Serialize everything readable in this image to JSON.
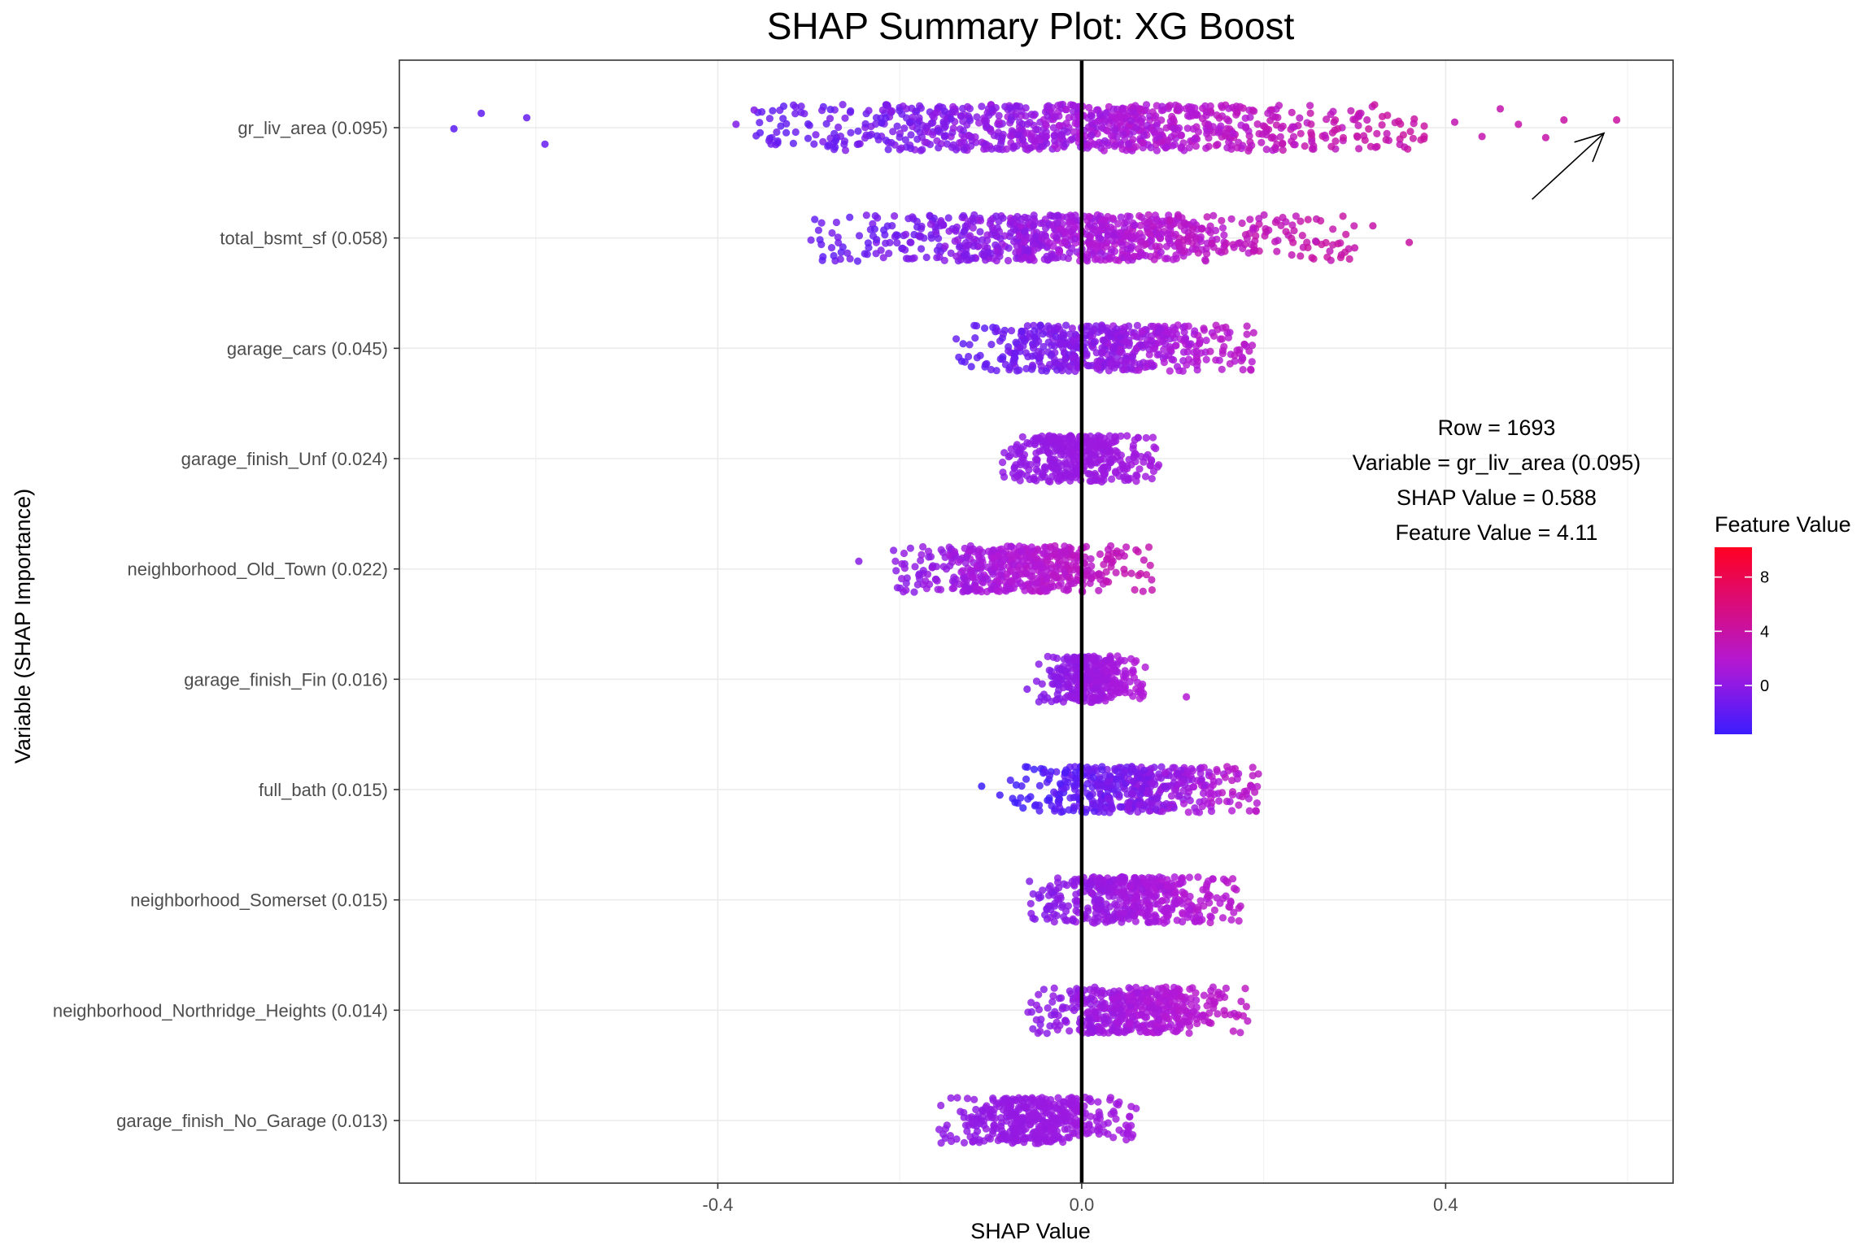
{
  "chart_data": {
    "type": "scatter",
    "title": "SHAP Summary Plot: XG Boost",
    "xlabel": "SHAP Value",
    "ylabel": "Variable (SHAP Importance)",
    "xlim": [
      -0.75,
      0.65
    ],
    "xticks": [
      -0.4,
      0.0,
      0.4
    ],
    "xtick_labels": [
      "-0.4",
      "0.0",
      "0.4"
    ],
    "grid": true,
    "zero_line": 0.0,
    "variables": [
      {
        "name": "gr_liv_area (0.095)",
        "shap_min": -0.69,
        "shap_max": 0.588,
        "dense_min": -0.36,
        "dense_max": 0.38,
        "feature_min": -2.2,
        "feature_max": 4.2,
        "outliers": [
          [
            -0.69,
            -0.01
          ],
          [
            -0.66,
            0.13
          ],
          [
            -0.61,
            0.09
          ],
          [
            -0.59,
            -0.15
          ],
          [
            -0.36,
            0.16
          ],
          [
            -0.38,
            0.03
          ],
          [
            0.41,
            0.05
          ],
          [
            0.44,
            -0.08
          ],
          [
            0.46,
            0.17
          ],
          [
            0.48,
            0.03
          ],
          [
            0.51,
            -0.09
          ],
          [
            0.53,
            0.07
          ],
          [
            0.588,
            0.07
          ]
        ]
      },
      {
        "name": "total_bsmt_sf (0.058)",
        "shap_min": -0.31,
        "shap_max": 0.36,
        "dense_min": -0.3,
        "dense_max": 0.3,
        "feature_min": -2.1,
        "feature_max": 4.1,
        "outliers": [
          [
            0.36,
            -0.04
          ],
          [
            0.32,
            0.11
          ],
          [
            0.3,
            -0.09
          ]
        ]
      },
      {
        "name": "garage_cars (0.045)",
        "shap_min": -0.14,
        "shap_max": 0.19,
        "dense_min": -0.14,
        "dense_max": 0.19,
        "feature_min": -2.3,
        "feature_max": 2.5,
        "outliers": []
      },
      {
        "name": "garage_finish_Unf (0.024)",
        "shap_min": -0.09,
        "shap_max": 0.085,
        "dense_min": -0.09,
        "dense_max": 0.085,
        "feature_min": 0.0,
        "feature_max": 0.9,
        "outliers": []
      },
      {
        "name": "neighborhood_Old_Town (0.022)",
        "shap_min": -0.245,
        "shap_max": 0.08,
        "dense_min": -0.21,
        "dense_max": 0.08,
        "feature_min": -0.3,
        "feature_max": 3.6,
        "outliers": [
          [
            -0.245,
            0.07
          ]
        ]
      },
      {
        "name": "garage_finish_Fin (0.016)",
        "shap_min": -0.06,
        "shap_max": 0.115,
        "dense_min": -0.05,
        "dense_max": 0.07,
        "feature_min": -0.6,
        "feature_max": 1.7,
        "outliers": [
          [
            0.115,
            -0.16
          ],
          [
            -0.06,
            -0.09
          ]
        ]
      },
      {
        "name": "full_bath (0.015)",
        "shap_min": -0.11,
        "shap_max": 0.195,
        "dense_min": -0.08,
        "dense_max": 0.195,
        "feature_min": -3.6,
        "feature_max": 2.5,
        "outliers": [
          [
            -0.11,
            0.03
          ],
          [
            -0.09,
            -0.05
          ]
        ]
      },
      {
        "name": "neighborhood_Somerset (0.015)",
        "shap_min": -0.06,
        "shap_max": 0.175,
        "dense_min": -0.06,
        "dense_max": 0.175,
        "feature_min": -0.6,
        "feature_max": 2.3,
        "outliers": []
      },
      {
        "name": "neighborhood_Northridge_Heights (0.014)",
        "shap_min": -0.06,
        "shap_max": 0.185,
        "dense_min": -0.06,
        "dense_max": 0.185,
        "feature_min": -0.4,
        "feature_max": 2.7,
        "outliers": []
      },
      {
        "name": "garage_finish_No_Garage (0.013)",
        "shap_min": -0.16,
        "shap_max": 0.06,
        "dense_min": -0.16,
        "dense_max": 0.06,
        "feature_min": -0.1,
        "feature_max": 0.9,
        "outliers": []
      }
    ],
    "legend": {
      "title": "Feature Value",
      "placement": "right",
      "range": [
        -3.6,
        10.2
      ],
      "ticks": [
        0,
        4,
        8
      ],
      "tick_labels": [
        "0",
        "4",
        "8"
      ],
      "colors": {
        "low": "#3b1cff",
        "mid": "#b119d8",
        "high": "#ff0022"
      }
    },
    "annotation": {
      "lines": [
        "Row = 1693",
        "Variable = gr_liv_area (0.095)",
        "SHAP Value = 0.588",
        "Feature Value = 4.11"
      ],
      "arrow_from": [
        0.495,
        9.35
      ],
      "arrow_to": [
        0.574,
        9.95
      ]
    }
  }
}
